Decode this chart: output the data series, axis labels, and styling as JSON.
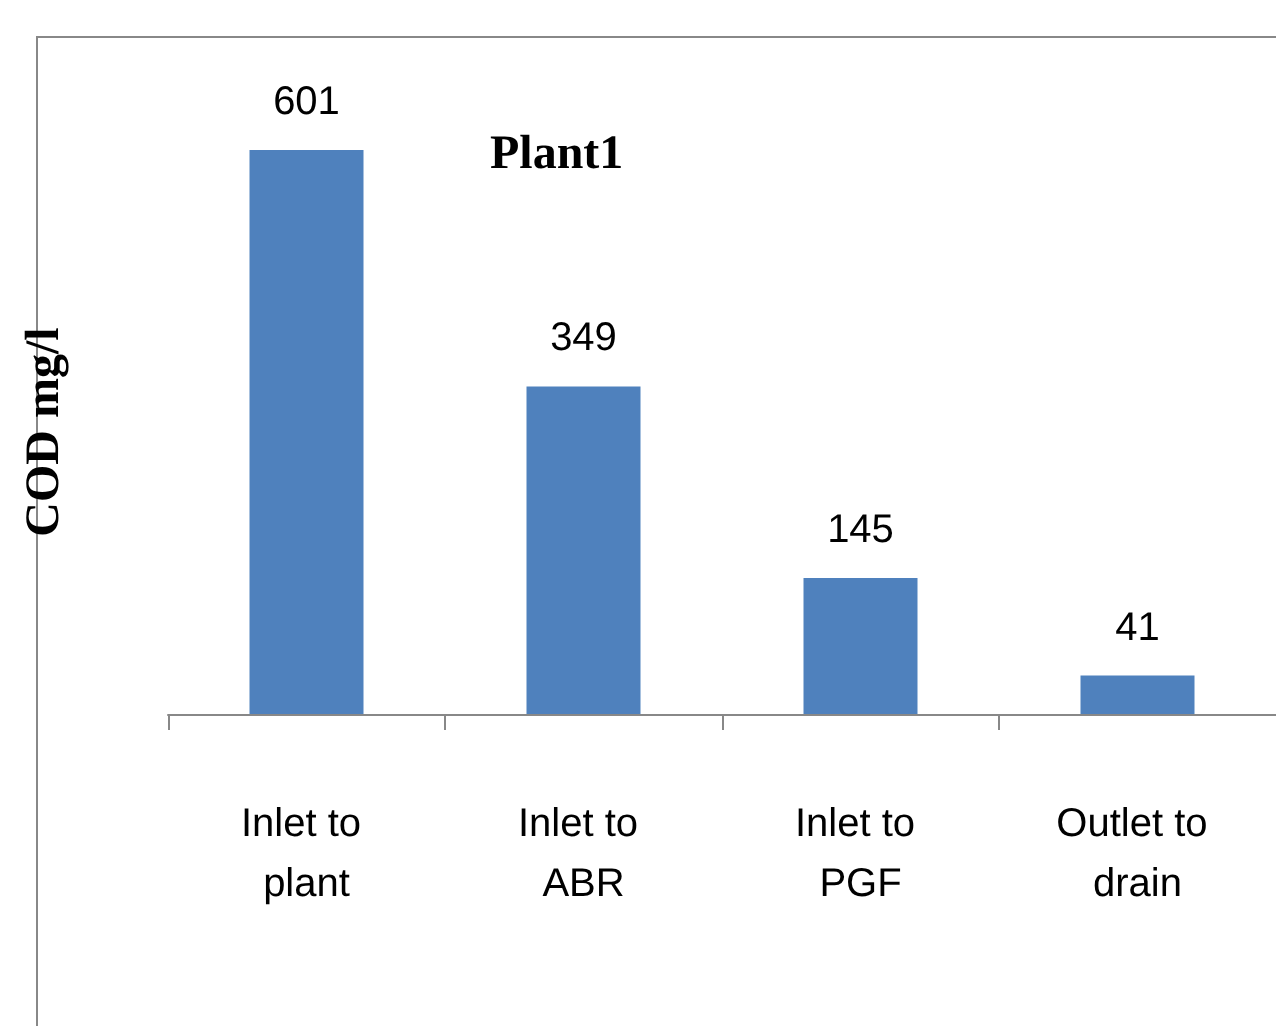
{
  "chart_data": {
    "type": "bar",
    "title": "Plant1",
    "ylabel": "COD mg/l",
    "categories": [
      "Inlet to plant",
      "Inlet to ABR",
      "Inlet to PGF",
      "Outlet to drain"
    ],
    "values": [
      601,
      349,
      145,
      41
    ],
    "color": "#4f81bd",
    "data_labels": true
  }
}
